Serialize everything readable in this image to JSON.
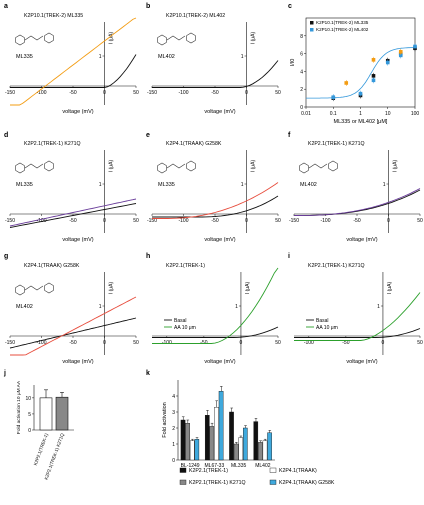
{
  "panel_letters": [
    "a",
    "b",
    "c",
    "d",
    "e",
    "f",
    "g",
    "h",
    "i",
    "j",
    "k"
  ],
  "panels": {
    "a": {
      "title": "K2P10.1(TREK-2) ML335",
      "compound": "ML335",
      "xlabel": "voltage (mV)",
      "ylabel": "I (μA)",
      "ticks": [
        "-150",
        "-100",
        "-50",
        "0",
        "50"
      ],
      "ytick": "1",
      "colors": [
        "#f39c12",
        "#111111"
      ]
    },
    "b": {
      "title": "K2P10.1(TREK-2) ML402",
      "compound": "ML402",
      "xlabel": "voltage (mV)",
      "ylabel": "I (μA)",
      "ticks": [
        "-150",
        "-100",
        "-50",
        "0",
        "50"
      ],
      "ytick": "1",
      "colors": [
        "#3498db",
        "#111111"
      ]
    },
    "d": {
      "title": "K2P2.1(TREK-1) K271Q",
      "compound": "ML335",
      "xlabel": "voltage (mV)",
      "ylabel": "I (μA)",
      "ticks": [
        "-150",
        "-100",
        "-50",
        "0",
        "50"
      ],
      "ytick": "1",
      "colors": [
        "#6a3d9a",
        "#111111"
      ]
    },
    "e": {
      "title": "K2P4.1(TRAAK) G258K",
      "compound": "ML335",
      "xlabel": "voltage (mV)",
      "ylabel": "I (μA)",
      "ticks": [
        "-150",
        "-100",
        "-50",
        "0",
        "50"
      ],
      "ytick": "1",
      "colors": [
        "#e74c3c",
        "#111111"
      ]
    },
    "f": {
      "title": "K2P2.1(TREK-1) K271Q",
      "compound": "ML402",
      "xlabel": "voltage (mV)",
      "ylabel": "I (μA)",
      "ticks": [
        "-150",
        "-100",
        "-50",
        "0",
        "50"
      ],
      "ytick": "1",
      "colors": [
        "#6a3d9a",
        "#111111"
      ]
    },
    "g": {
      "title": "K2P4.1(TRAAK) G258K",
      "compound": "ML402",
      "xlabel": "voltage (mV)",
      "ylabel": "I (μA)",
      "ticks": [
        "-150",
        "-100",
        "-50",
        "0",
        "50"
      ],
      "ytick": "1",
      "colors": [
        "#e74c3c",
        "#111111"
      ]
    },
    "h": {
      "title": "K2P2.1(TREK-1)",
      "xlabel": "voltage (mV)",
      "ylabel": "I (μA)",
      "ticks": [
        "-100",
        "-50",
        "0",
        "50"
      ],
      "ytick": "1",
      "legend": [
        "Basal",
        "AA 10 μm"
      ],
      "colors": [
        "#2ca02c",
        "#111111"
      ]
    },
    "i": {
      "title": "K2P2.1(TREK-1) K271Q",
      "xlabel": "voltage (mV)",
      "ylabel": "I (μA)",
      "ticks": [
        "-100",
        "-50",
        "0",
        "50"
      ],
      "ytick": "1",
      "legend": [
        "Basal",
        "AA 10 μm"
      ],
      "colors": [
        "#2ca02c",
        "#111111"
      ]
    }
  },
  "chart_data": [
    {
      "id": "c",
      "type": "scatter",
      "xlabel": "ML335 or ML402 [μM]",
      "ylabel": "I/I0",
      "xscale": "log",
      "xticks": [
        "0.01",
        "0.1",
        "1",
        "10",
        "100"
      ],
      "yticks": [
        "0",
        "2",
        "4",
        "6",
        "8"
      ],
      "ylim": [
        0,
        10
      ],
      "legend_position": "top-left",
      "series": [
        {
          "name": "K2P10.1(TREK-2) ML335",
          "color": "#111111",
          "x": [
            0.1,
            1,
            3,
            10,
            30,
            100
          ],
          "y": [
            1.0,
            1.3,
            3.5,
            5.2,
            6.0,
            6.6
          ]
        },
        {
          "name": "K2P10.1(TREK-2) ML402",
          "color": "#3498db",
          "x": [
            0.1,
            1,
            3,
            10,
            30,
            100
          ],
          "y": [
            1.1,
            1.5,
            3.0,
            5.0,
            5.8,
            6.8
          ]
        },
        {
          "name": "",
          "color": "#f39c12",
          "x": [
            0.3,
            3,
            30
          ],
          "y": [
            2.7,
            5.3,
            6.2
          ]
        }
      ]
    },
    {
      "id": "j",
      "type": "bar",
      "ylabel": "Fold activation 10 μM AA",
      "yticks": [
        "0",
        "5",
        "10"
      ],
      "ylim": [
        0,
        14
      ],
      "categories": [
        "K2P2.1(TREK-1)",
        "K2P2.1(TREK-1) K271Q"
      ],
      "series": [
        {
          "name": "",
          "values": [
            10.0,
            10.2
          ],
          "errors": [
            2.5,
            1.5
          ],
          "colors": [
            "#ffffff",
            "#888888"
          ]
        }
      ]
    },
    {
      "id": "k",
      "type": "bar",
      "ylabel": "Fold activation",
      "yticks": [
        "0",
        "1",
        "2",
        "3",
        "4"
      ],
      "ylim": [
        0,
        5
      ],
      "categories": [
        "BL-1249",
        "ML67-33",
        "ML335",
        "ML402"
      ],
      "series": [
        {
          "name": "K2P2.1(TREK-1)",
          "color": "#111111",
          "values": [
            2.5,
            2.8,
            3.0,
            2.4
          ],
          "errors": [
            0.2,
            0.3,
            0.25,
            0.2
          ]
        },
        {
          "name": "K2P2.1(TREK-1) K271Q",
          "color": "#888888",
          "values": [
            2.3,
            2.1,
            1.0,
            1.1
          ],
          "errors": [
            0.2,
            0.2,
            0.1,
            0.1
          ]
        },
        {
          "name": "K2P4.1(TRAAK)",
          "color": "#ffffff",
          "values": [
            1.2,
            3.3,
            1.4,
            1.2
          ],
          "errors": [
            0.1,
            0.4,
            0.1,
            0.1
          ]
        },
        {
          "name": "K2P4.1(TRAAK) G258K",
          "color": "#3fa9dd",
          "values": [
            1.3,
            4.3,
            2.0,
            1.7
          ],
          "errors": [
            0.1,
            0.3,
            0.15,
            0.15
          ]
        }
      ]
    }
  ]
}
